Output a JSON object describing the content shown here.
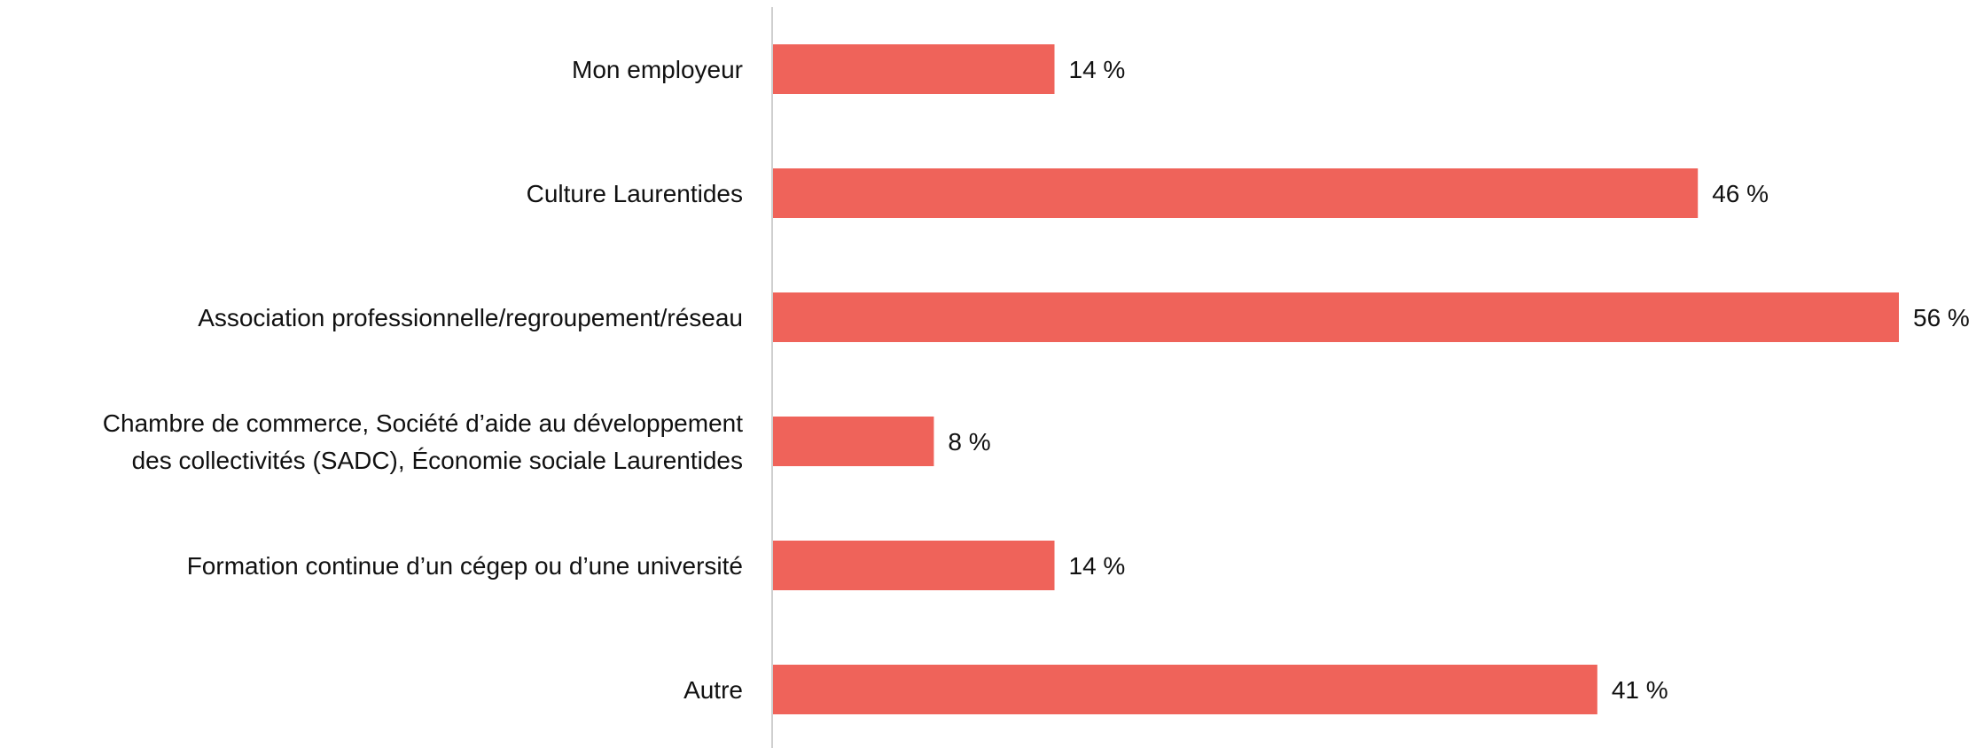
{
  "chart_data": {
    "type": "bar",
    "orientation": "horizontal",
    "categories": [
      [
        "Mon employeur"
      ],
      [
        "Culture Laurentides"
      ],
      [
        "Association professionnelle/regroupement/réseau"
      ],
      [
        "Chambre de commerce, Société d’aide au développement",
        "des collectivités (SADC), Économie sociale Laurentides"
      ],
      [
        "Formation continue d’un cégep ou d’une université"
      ],
      [
        "Autre"
      ]
    ],
    "values": [
      14,
      46,
      56,
      8,
      14,
      41
    ],
    "value_labels": [
      "14 %",
      "46 %",
      "56 %",
      "8 %",
      "14 %",
      "41 %"
    ],
    "bar_color": "#EF635A",
    "axis_color": "#CFCFCF",
    "xlim": [
      0,
      56
    ],
    "grid": false,
    "legend": "none"
  }
}
